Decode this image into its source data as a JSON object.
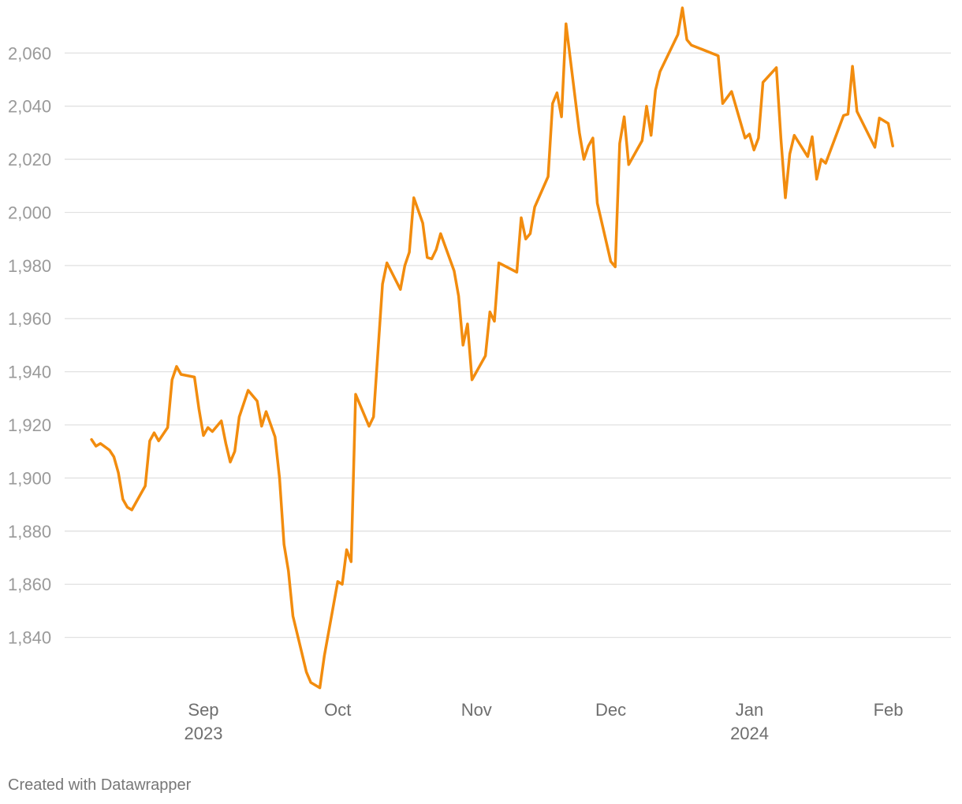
{
  "footer": {
    "credit": "Created with Datawrapper"
  },
  "chart_data": {
    "type": "line",
    "title": "",
    "xlabel": "",
    "ylabel": "",
    "grid": true,
    "legend": "none",
    "colors": {
      "line": "#f28c0e",
      "grid": "#e1e1e1",
      "ytick": "#9a9a9a",
      "xtick": "#6e6e6e"
    },
    "xlim": [
      "2023-08-01",
      "2024-02-15"
    ],
    "ylim": [
      1820,
      2077
    ],
    "y_ticks": [
      {
        "value": 1840,
        "label": "1,840"
      },
      {
        "value": 1860,
        "label": "1,860"
      },
      {
        "value": 1880,
        "label": "1,880"
      },
      {
        "value": 1900,
        "label": "1,900"
      },
      {
        "value": 1920,
        "label": "1,920"
      },
      {
        "value": 1940,
        "label": "1,940"
      },
      {
        "value": 1960,
        "label": "1,960"
      },
      {
        "value": 1980,
        "label": "1,980"
      },
      {
        "value": 2000,
        "label": "2,000"
      },
      {
        "value": 2020,
        "label": "2,020"
      },
      {
        "value": 2040,
        "label": "2,040"
      },
      {
        "value": 2060,
        "label": "2,060"
      }
    ],
    "x_ticks": [
      {
        "date": "2023-09-01",
        "label": "Sep",
        "sublabel": "2023"
      },
      {
        "date": "2023-10-01",
        "label": "Oct",
        "sublabel": ""
      },
      {
        "date": "2023-11-01",
        "label": "Nov",
        "sublabel": ""
      },
      {
        "date": "2023-12-01",
        "label": "Dec",
        "sublabel": ""
      },
      {
        "date": "2024-01-01",
        "label": "Jan",
        "sublabel": "2024"
      },
      {
        "date": "2024-02-01",
        "label": "Feb",
        "sublabel": ""
      }
    ],
    "series": [
      {
        "color": "#f28c0e",
        "points": [
          [
            "2023-08-07",
            1914.5
          ],
          [
            "2023-08-08",
            1912
          ],
          [
            "2023-08-09",
            1913
          ],
          [
            "2023-08-11",
            1910.5
          ],
          [
            "2023-08-12",
            1908
          ],
          [
            "2023-08-13",
            1902
          ],
          [
            "2023-08-14",
            1892
          ],
          [
            "2023-08-15",
            1889
          ],
          [
            "2023-08-16",
            1888
          ],
          [
            "2023-08-18",
            1894
          ],
          [
            "2023-08-19",
            1897
          ],
          [
            "2023-08-20",
            1914
          ],
          [
            "2023-08-21",
            1917
          ],
          [
            "2023-08-22",
            1914
          ],
          [
            "2023-08-24",
            1919
          ],
          [
            "2023-08-25",
            1937
          ],
          [
            "2023-08-26",
            1942
          ],
          [
            "2023-08-27",
            1939
          ],
          [
            "2023-08-30",
            1938
          ],
          [
            "2023-08-31",
            1926
          ],
          [
            "2023-09-01",
            1916
          ],
          [
            "2023-09-02",
            1919
          ],
          [
            "2023-09-03",
            1917.5
          ],
          [
            "2023-09-05",
            1921.5
          ],
          [
            "2023-09-06",
            1913
          ],
          [
            "2023-09-07",
            1906
          ],
          [
            "2023-09-08",
            1910
          ],
          [
            "2023-09-09",
            1923
          ],
          [
            "2023-09-11",
            1933
          ],
          [
            "2023-09-13",
            1929
          ],
          [
            "2023-09-14",
            1919.5
          ],
          [
            "2023-09-15",
            1925
          ],
          [
            "2023-09-17",
            1915.5
          ],
          [
            "2023-09-18",
            1900
          ],
          [
            "2023-09-19",
            1875
          ],
          [
            "2023-09-20",
            1865
          ],
          [
            "2023-09-21",
            1848
          ],
          [
            "2023-09-23",
            1834
          ],
          [
            "2023-09-24",
            1827
          ],
          [
            "2023-09-25",
            1823
          ],
          [
            "2023-09-27",
            1821
          ],
          [
            "2023-09-28",
            1833
          ],
          [
            "2023-10-01",
            1861
          ],
          [
            "2023-10-02",
            1860
          ],
          [
            "2023-10-03",
            1873
          ],
          [
            "2023-10-04",
            1868.5
          ],
          [
            "2023-10-05",
            1931.5
          ],
          [
            "2023-10-08",
            1919.5
          ],
          [
            "2023-10-09",
            1923
          ],
          [
            "2023-10-11",
            1973
          ],
          [
            "2023-10-12",
            1981
          ],
          [
            "2023-10-15",
            1971
          ],
          [
            "2023-10-16",
            1980
          ],
          [
            "2023-10-17",
            1985
          ],
          [
            "2023-10-18",
            2005.5
          ],
          [
            "2023-10-20",
            1996
          ],
          [
            "2023-10-21",
            1983
          ],
          [
            "2023-10-22",
            1982.5
          ],
          [
            "2023-10-23",
            1986
          ],
          [
            "2023-10-24",
            1992
          ],
          [
            "2023-10-27",
            1978
          ],
          [
            "2023-10-28",
            1968.5
          ],
          [
            "2023-10-29",
            1950
          ],
          [
            "2023-10-30",
            1958
          ],
          [
            "2023-10-31",
            1937
          ],
          [
            "2023-11-03",
            1946
          ],
          [
            "2023-11-04",
            1962.5
          ],
          [
            "2023-11-05",
            1959
          ],
          [
            "2023-11-06",
            1981
          ],
          [
            "2023-11-10",
            1977.5
          ],
          [
            "2023-11-11",
            1998
          ],
          [
            "2023-11-12",
            1990
          ],
          [
            "2023-11-13",
            1992
          ],
          [
            "2023-11-14",
            2002
          ],
          [
            "2023-11-17",
            2013.5
          ],
          [
            "2023-11-18",
            2041
          ],
          [
            "2023-11-19",
            2045
          ],
          [
            "2023-11-20",
            2036
          ],
          [
            "2023-11-21",
            2071
          ],
          [
            "2023-11-24",
            2030
          ],
          [
            "2023-11-25",
            2020
          ],
          [
            "2023-11-26",
            2025
          ],
          [
            "2023-11-27",
            2028
          ],
          [
            "2023-11-28",
            2003.5
          ],
          [
            "2023-12-01",
            1981.5
          ],
          [
            "2023-12-02",
            1979.5
          ],
          [
            "2023-12-03",
            2026
          ],
          [
            "2023-12-04",
            2036
          ],
          [
            "2023-12-05",
            2018
          ],
          [
            "2023-12-08",
            2027
          ],
          [
            "2023-12-09",
            2040
          ],
          [
            "2023-12-10",
            2029
          ],
          [
            "2023-12-11",
            2046
          ],
          [
            "2023-12-12",
            2053
          ],
          [
            "2023-12-16",
            2067
          ],
          [
            "2023-12-17",
            2077
          ],
          [
            "2023-12-18",
            2065
          ],
          [
            "2023-12-19",
            2063
          ],
          [
            "2023-12-25",
            2059
          ],
          [
            "2023-12-26",
            2041
          ],
          [
            "2023-12-28",
            2045.5
          ],
          [
            "2023-12-31",
            2028
          ],
          [
            "2024-01-01",
            2029.5
          ],
          [
            "2024-01-02",
            2023.5
          ],
          [
            "2024-01-03",
            2028
          ],
          [
            "2024-01-04",
            2049
          ],
          [
            "2024-01-07",
            2054.5
          ],
          [
            "2024-01-08",
            2028
          ],
          [
            "2024-01-09",
            2005.5
          ],
          [
            "2024-01-10",
            2022
          ],
          [
            "2024-01-11",
            2029
          ],
          [
            "2024-01-14",
            2021
          ],
          [
            "2024-01-15",
            2028.5
          ],
          [
            "2024-01-16",
            2012.5
          ],
          [
            "2024-01-17",
            2020
          ],
          [
            "2024-01-18",
            2018.5
          ],
          [
            "2024-01-22",
            2036.5
          ],
          [
            "2024-01-23",
            2037
          ],
          [
            "2024-01-24",
            2055
          ],
          [
            "2024-01-25",
            2038
          ],
          [
            "2024-01-29",
            2024.5
          ],
          [
            "2024-01-30",
            2035.5
          ],
          [
            "2024-02-01",
            2033.5
          ],
          [
            "2024-02-02",
            2025
          ]
        ]
      }
    ]
  }
}
